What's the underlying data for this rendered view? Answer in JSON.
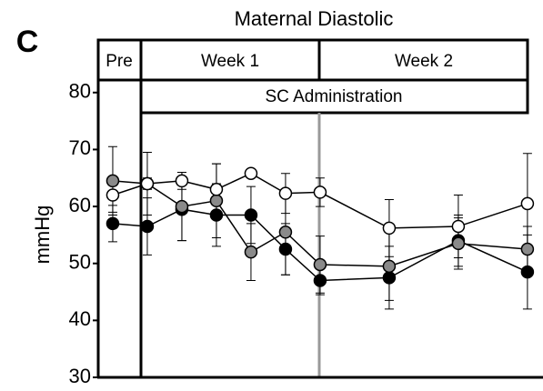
{
  "chart_data": {
    "type": "line",
    "panel": "C",
    "title": "Maternal Diastolic",
    "ylabel": "mmHg",
    "periods": [
      "Pre",
      "Week 1",
      "Week 2"
    ],
    "treatment": "SC Administration",
    "x": [
      -1,
      0,
      1,
      2,
      3,
      4,
      5,
      7,
      9,
      11
    ],
    "xlim": [
      -1.42,
      11.45
    ],
    "ylim": [
      30,
      82.2
    ],
    "yticks": [
      30,
      40,
      50,
      60,
      70,
      80
    ],
    "series": [
      {
        "color": "#000000",
        "values": [
          57,
          56.5,
          59.5,
          58.5,
          58.5,
          52.5,
          47,
          47.5,
          54,
          48.5
        ],
        "errors": [
          3.2,
          5,
          5.5,
          5.5,
          5,
          4.5,
          2.5,
          5.5,
          4.5,
          6.5
        ]
      },
      {
        "color": "#8a8a8a",
        "values": [
          64.5,
          64,
          60,
          61,
          52,
          55.5,
          49.8,
          49.5,
          53.5,
          52.5
        ],
        "errors": [
          6,
          5.5,
          6,
          6.5,
          5,
          7.5,
          5,
          6,
          4.5,
          4
        ]
      },
      {
        "color": "#ffffff",
        "values": [
          62,
          64,
          64.5,
          63,
          65.8,
          62.3,
          62.5,
          56.2,
          56.5,
          60.5
        ],
        "errors": [
          3,
          1,
          1.5,
          4.5,
          0,
          3.5,
          2.5,
          5,
          5.5,
          8.8
        ]
      }
    ]
  }
}
